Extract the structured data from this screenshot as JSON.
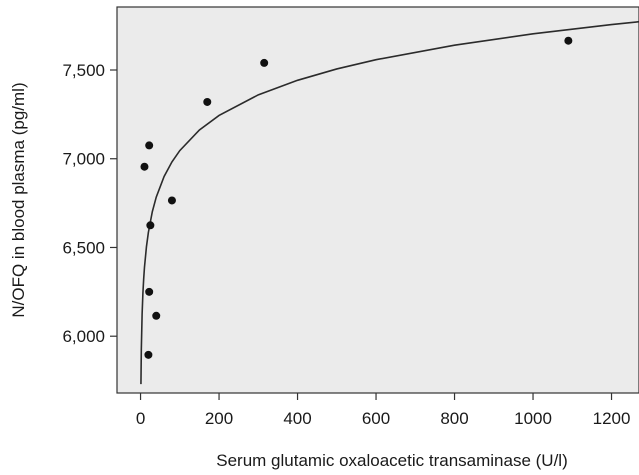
{
  "chart_data": {
    "type": "scatter",
    "title": "",
    "xlabel": "Serum glutamic oxaloacetic transaminase (U/l)",
    "ylabel": "N/OFQ in blood plasma (pg/ml)",
    "xlim": [
      -60,
      1270
    ],
    "ylim": [
      5680,
      7855
    ],
    "xticks": [
      0,
      200,
      400,
      600,
      800,
      1000,
      1200
    ],
    "xtick_labels": [
      "0",
      "200",
      "400",
      "600",
      "800",
      "1000",
      "1200"
    ],
    "yticks": [
      6000,
      6500,
      7000,
      7500
    ],
    "ytick_labels": [
      "6,000",
      "6,500",
      "7,000",
      "7,500"
    ],
    "grid": false,
    "background": "#ebebeb",
    "point_color": "#111111",
    "points": [
      {
        "x": 10,
        "y": 6955
      },
      {
        "x": 22,
        "y": 7075
      },
      {
        "x": 25,
        "y": 6625
      },
      {
        "x": 22,
        "y": 6250
      },
      {
        "x": 20,
        "y": 5895
      },
      {
        "x": 40,
        "y": 6115
      },
      {
        "x": 80,
        "y": 6765
      },
      {
        "x": 170,
        "y": 7320
      },
      {
        "x": 315,
        "y": 7540
      },
      {
        "x": 1090,
        "y": 7665
      }
    ],
    "fit": {
      "model": "logarithmic",
      "x": [
        1,
        2,
        4,
        6,
        8,
        10,
        15,
        20,
        30,
        40,
        60,
        80,
        100,
        150,
        200,
        300,
        400,
        500,
        600,
        800,
        1000,
        1200,
        1270
      ],
      "y": [
        5730,
        5928,
        6126,
        6242,
        6324,
        6388,
        6504,
        6586,
        6702,
        6784,
        6900,
        6982,
        7046,
        7162,
        7244,
        7360,
        7442,
        7506,
        7558,
        7640,
        7704,
        7756,
        7772
      ]
    }
  }
}
